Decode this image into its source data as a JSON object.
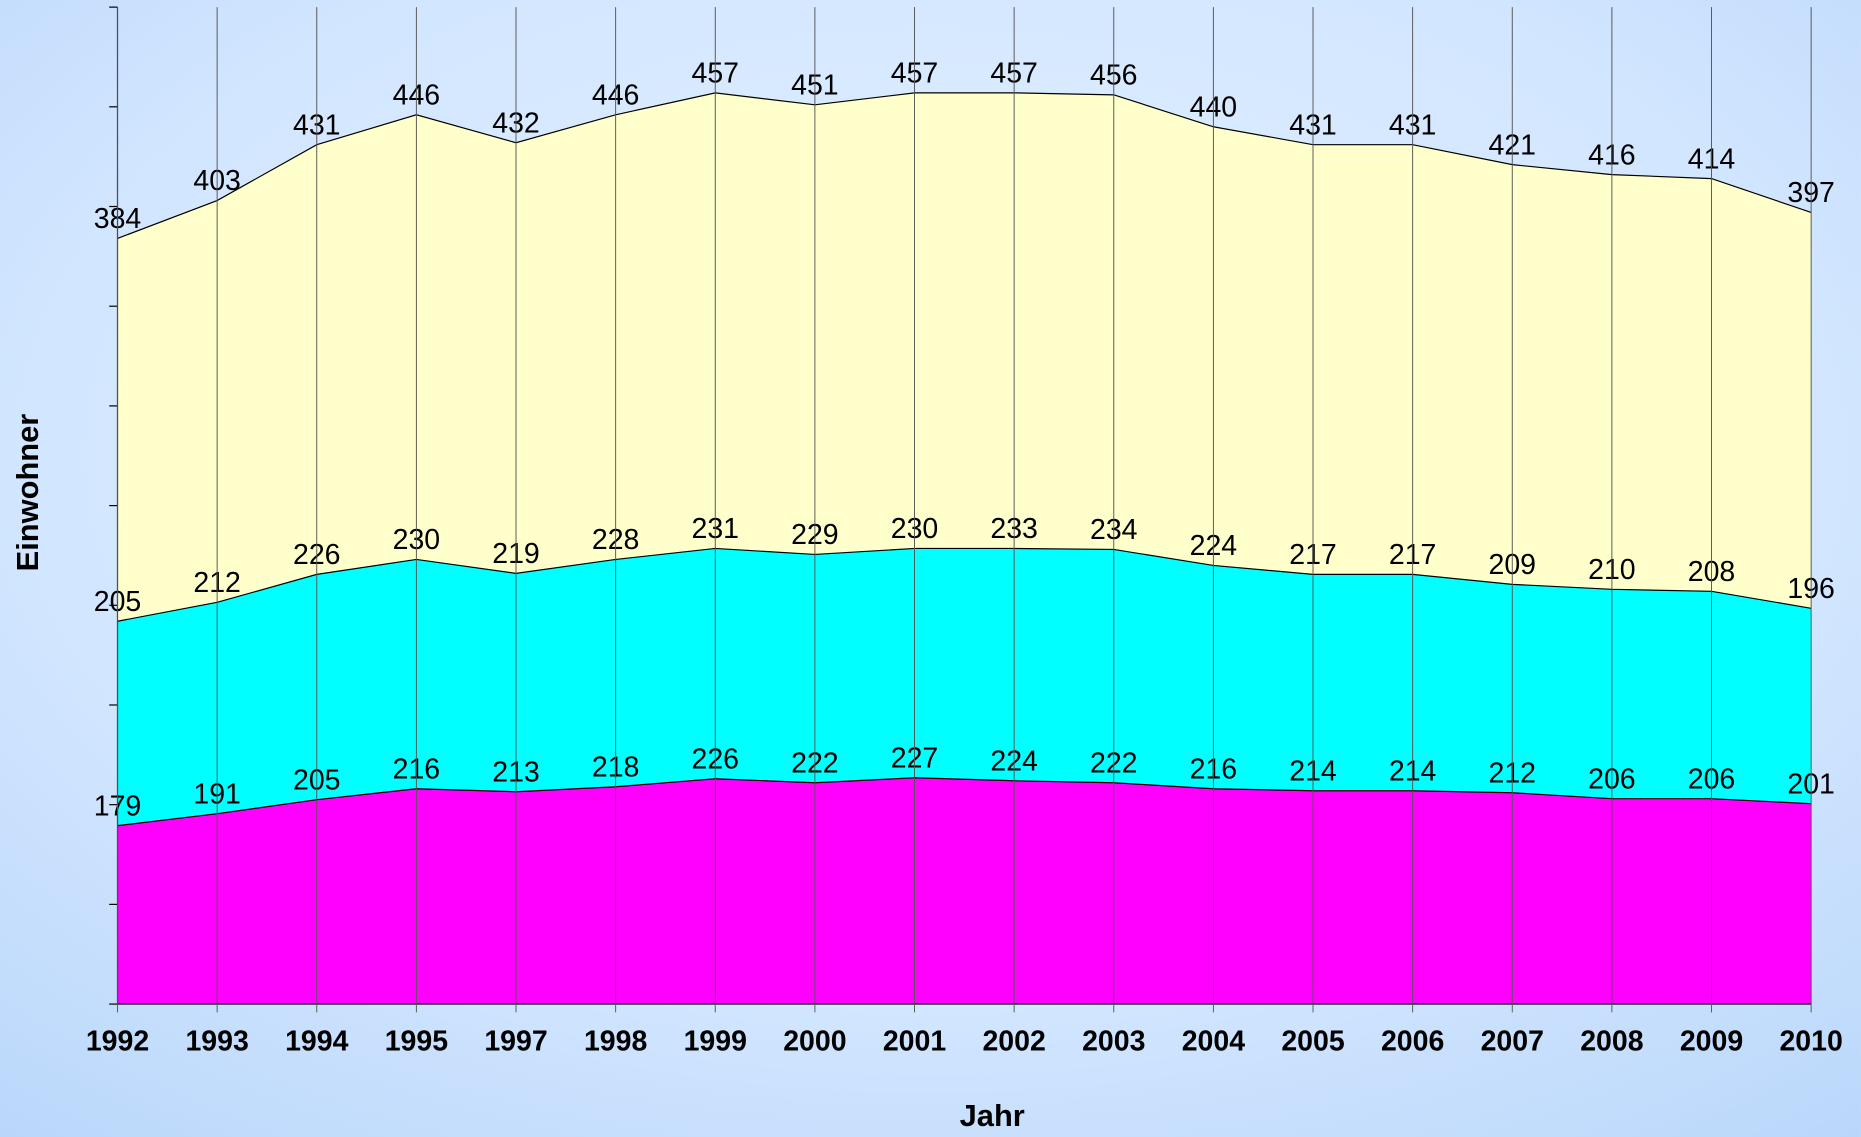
{
  "chart_data": {
    "type": "stacked-area",
    "x_label": "Jahr",
    "y_label": "Einwohner",
    "categories": [
      "1992",
      "1993",
      "1994",
      "1995",
      "1997",
      "1998",
      "1999",
      "2000",
      "2001",
      "2002",
      "2003",
      "2004",
      "2005",
      "2006",
      "2007",
      "2008",
      "2009",
      "2010"
    ],
    "series": [
      {
        "color": "#ff00ff",
        "values": [
          179,
          191,
          205,
          216,
          213,
          218,
          226,
          222,
          227,
          224,
          222,
          216,
          214,
          214,
          212,
          206,
          206,
          201
        ]
      },
      {
        "color": "#00ffff",
        "values": [
          205,
          212,
          226,
          230,
          219,
          228,
          231,
          229,
          230,
          233,
          234,
          224,
          217,
          217,
          209,
          210,
          208,
          196
        ]
      },
      {
        "color": "#ffffcc",
        "values": [
          384,
          403,
          431,
          446,
          432,
          446,
          457,
          451,
          457,
          457,
          456,
          440,
          431,
          431,
          421,
          416,
          414,
          397
        ]
      }
    ],
    "ylim": [
      0,
      1000
    ],
    "yticks": [
      0,
      100,
      200,
      300,
      400,
      500,
      600,
      700,
      800,
      900,
      1000
    ]
  }
}
